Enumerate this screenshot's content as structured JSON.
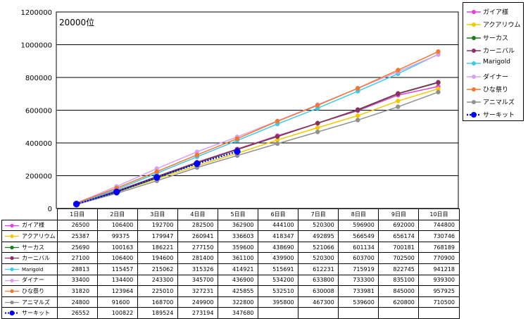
{
  "chart_data": {
    "type": "line",
    "annotation": "20000位",
    "categories": [
      "1日目",
      "2日目",
      "3日目",
      "4日目",
      "5日目",
      "6日目",
      "7日目",
      "8日目",
      "9日目",
      "10日目"
    ],
    "ylim": [
      0,
      1200000
    ],
    "yticks": [
      "0",
      "200000",
      "400000",
      "600000",
      "800000",
      "1000000",
      "1200000"
    ],
    "grid": true,
    "legend_position": "right",
    "series": [
      {
        "name": "ガイア様",
        "color": "#e040e0",
        "values": [
          26500,
          106400,
          192700,
          282500,
          362900,
          444100,
          520300,
          596900,
          692000,
          744800
        ]
      },
      {
        "name": "アクアリウム",
        "color": "#f5c800",
        "values": [
          25387,
          99375,
          179947,
          260941,
          336603,
          418347,
          492895,
          566549,
          656174,
          730746
        ]
      },
      {
        "name": "サーカス",
        "color": "#1a7a1a",
        "values": [
          25690,
          100163,
          186221,
          277150,
          359600,
          438690,
          521066,
          601134,
          700181,
          768189
        ]
      },
      {
        "name": "カーニバル",
        "color": "#8b3060",
        "values": [
          27100,
          106400,
          194600,
          281400,
          361100,
          439900,
          520300,
          603700,
          702500,
          770900
        ]
      },
      {
        "name": "Marigold",
        "color": "#40c8e8",
        "values": [
          28813,
          115457,
          215062,
          315326,
          414921,
          515691,
          612231,
          715919,
          822745,
          941218
        ]
      },
      {
        "name": "ダイナー",
        "color": "#d8a0f0",
        "values": [
          33400,
          134400,
          243300,
          345700,
          436900,
          534200,
          633800,
          733300,
          835100,
          939300
        ]
      },
      {
        "name": "ひな祭り",
        "color": "#f07830",
        "values": [
          31820,
          123964,
          225010,
          327231,
          425855,
          532510,
          630008,
          733981,
          845000,
          957925
        ]
      },
      {
        "name": "アニマルズ",
        "color": "#909090",
        "values": [
          24800,
          91600,
          168700,
          249900,
          322800,
          395800,
          467300,
          539600,
          620800,
          710500
        ]
      },
      {
        "name": "サーキット",
        "color": "#0000ee",
        "dotted": true,
        "values": [
          26552,
          100822,
          189524,
          273194,
          347680,
          null,
          null,
          null,
          null,
          null
        ]
      }
    ],
    "table_values": [
      [
        "26500",
        "106400",
        "192700",
        "282500",
        "362900",
        "444100",
        "520300",
        "596900",
        "692000",
        "744800"
      ],
      [
        "25387",
        "99375",
        "179947",
        "260941",
        "336603",
        "418347",
        "492895",
        "566549",
        "656174",
        "730746"
      ],
      [
        "25690",
        "100163",
        "186221",
        "277150",
        "359600",
        "438690",
        "521066",
        "601134",
        "700181",
        "768189"
      ],
      [
        "27100",
        "106400",
        "194600",
        "281400",
        "361100",
        "439900",
        "520300",
        "603700",
        "702500",
        "770900"
      ],
      [
        "28813",
        "115457",
        "215062",
        "315326",
        "414921",
        "515691",
        "612231",
        "715919",
        "822745",
        "941218"
      ],
      [
        "33400",
        "134400",
        "243300",
        "345700",
        "436900",
        "534200",
        "633800",
        "733300",
        "835100",
        "939300"
      ],
      [
        "31820",
        "123964",
        "225010",
        "327231",
        "425855",
        "532510",
        "630008",
        "733981",
        "845000",
        "957925"
      ],
      [
        "24800",
        "91600",
        "168700",
        "249900",
        "322800",
        "395800",
        "467300",
        "539600",
        "620800",
        "710500"
      ],
      [
        "26552",
        "100822",
        "189524",
        "273194",
        "347680",
        "",
        "",
        "",
        "",
        ""
      ]
    ]
  }
}
